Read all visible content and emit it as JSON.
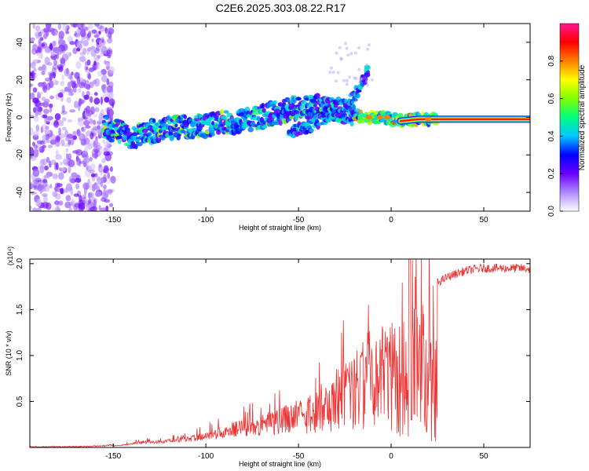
{
  "title": "C2E6.2025.303.08.22.R17",
  "chart_data": [
    {
      "type": "heatmap",
      "title": "C2E6.2025.303.08.22.R17",
      "xlabel": "Height of straight line (km)",
      "ylabel": "Frequency (Hz)",
      "xlim": [
        -195,
        75
      ],
      "ylim": [
        -50,
        50
      ],
      "x_ticks": [
        -150,
        -100,
        -50,
        0,
        50
      ],
      "y_ticks": [
        -40,
        -20,
        0,
        20,
        40
      ],
      "x_tick_labels": [
        "-150",
        "-100",
        "-50",
        "0",
        "50"
      ],
      "y_tick_labels": [
        "-40",
        "-20",
        "0",
        "20",
        "40"
      ],
      "colorbar": {
        "label": "Normalized spectral amplitude",
        "range": [
          0,
          1
        ],
        "ticks": [
          0.0,
          0.2,
          0.4,
          0.6,
          0.8
        ],
        "tick_labels": [
          "0.0",
          "0.2",
          "0.4",
          "0.6",
          "0.8"
        ],
        "colormap": [
          "#ffffff",
          "#b088ff",
          "#6a00ff",
          "#0000ff",
          "#00c8ff",
          "#00ff7f",
          "#7fff00",
          "#ffff00",
          "#ff8000",
          "#ff0000",
          "#ff1493"
        ]
      },
      "ridges": [
        {
          "name": "main",
          "x": [
            -155,
            -140,
            -120,
            -100,
            -80,
            -60,
            -45,
            -35,
            -25,
            -15,
            -5,
            5,
            15,
            30,
            50,
            75
          ],
          "y": [
            -5,
            -10,
            -6,
            -4,
            -2,
            3,
            6,
            6,
            3,
            0,
            0,
            -2,
            -1,
            -1,
            -1,
            -1
          ]
        },
        {
          "name": "secondary",
          "x": [
            -55,
            -45,
            -35,
            -25,
            -18,
            -12
          ],
          "y": [
            -8,
            -5,
            0,
            6,
            14,
            26
          ]
        }
      ],
      "scatter_region": {
        "x": [
          -195,
          -150
        ],
        "y": [
          -50,
          50
        ]
      }
    },
    {
      "type": "line",
      "xlabel": "Height of straight line (km)",
      "ylabel": "SNR (10 * v/v)",
      "y_multiplier": "(x10⁴)",
      "xlim": [
        -195,
        75
      ],
      "ylim": [
        0,
        2.05
      ],
      "x_ticks": [
        -150,
        -100,
        -50,
        0,
        50
      ],
      "y_ticks": [
        0.5,
        1.0,
        1.5,
        2.0
      ],
      "x_tick_labels": [
        "-150",
        "-100",
        "-50",
        "0",
        "50"
      ],
      "y_tick_labels": [
        "0.5",
        "1.0",
        "1.5",
        "2.0"
      ],
      "series": [
        {
          "name": "SNR",
          "color": "#ee3333",
          "x": [
            -195,
            -170,
            -155,
            -145,
            -140,
            -135,
            -130,
            -125,
            -120,
            -115,
            -110,
            -105,
            -100,
            -95,
            -90,
            -85,
            -80,
            -75,
            -70,
            -65,
            -60,
            -55,
            -50,
            -45,
            -40,
            -35,
            -30,
            -25,
            -20,
            -15,
            -12,
            -10,
            -7,
            -5,
            -3,
            0,
            3,
            5,
            7,
            9,
            10,
            11,
            13,
            15,
            20,
            25,
            30,
            35,
            40,
            45,
            50,
            60,
            70,
            75
          ],
          "y": [
            0.0,
            0.0,
            0.01,
            0.03,
            0.05,
            0.07,
            0.07,
            0.08,
            0.09,
            0.1,
            0.12,
            0.14,
            0.17,
            0.2,
            0.24,
            0.28,
            0.3,
            0.33,
            0.36,
            0.4,
            0.43,
            0.48,
            0.52,
            0.58,
            0.66,
            0.74,
            0.85,
            0.95,
            1.05,
            1.2,
            1.3,
            1.1,
            1.2,
            1.35,
            1.25,
            1.4,
            1.45,
            1.5,
            1.55,
            1.2,
            1.0,
            1.5,
            1.6,
            1.65,
            1.72,
            1.8,
            1.86,
            1.9,
            1.93,
            1.95,
            1.96,
            1.96,
            1.96,
            1.95
          ]
        }
      ]
    }
  ]
}
